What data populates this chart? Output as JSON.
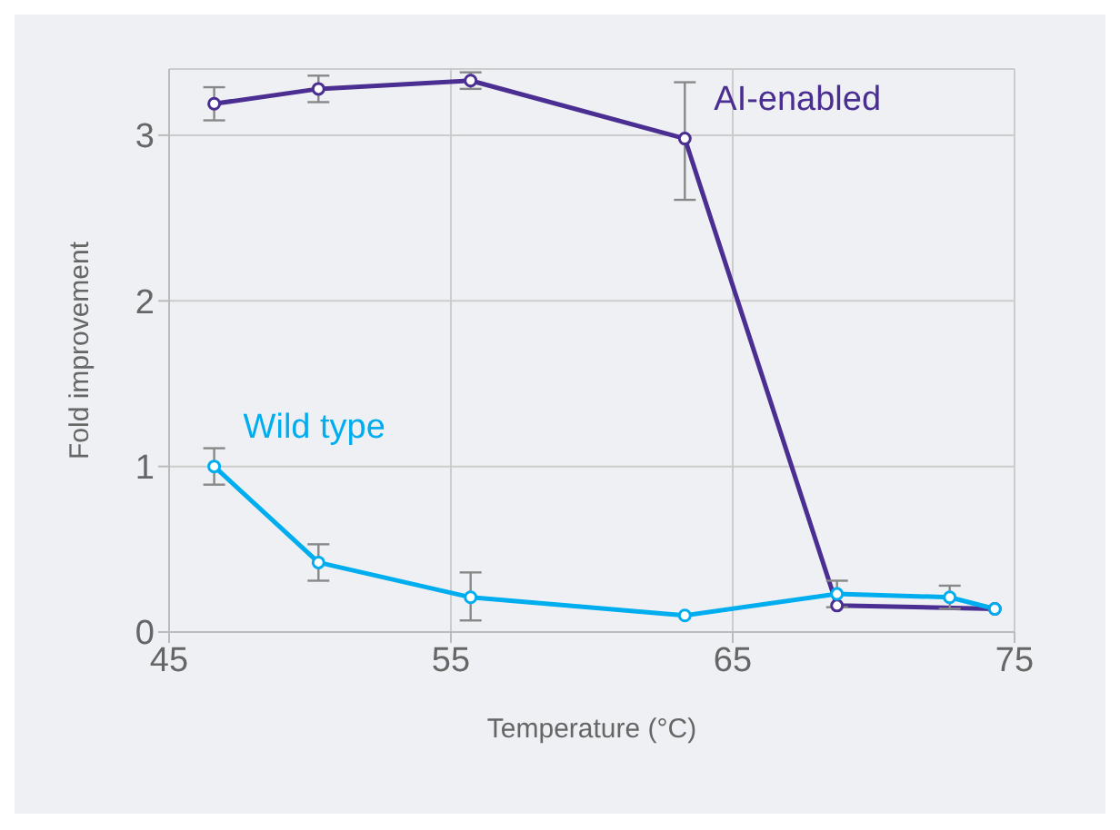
{
  "chart_data": {
    "type": "line",
    "xlabel": "Temperature (°C)",
    "ylabel": "Fold improvement",
    "xlim": [
      45,
      75
    ],
    "xticks": [
      45,
      55,
      65,
      75
    ],
    "ylim": [
      0,
      3.4
    ],
    "yticks": [
      0,
      1,
      2,
      3
    ],
    "grid": true,
    "legend": false,
    "marker": "circle",
    "line_style": "solid",
    "series": [
      {
        "name": "AI-enabled",
        "color": "#4b2e91",
        "x": [
          46.6,
          50.3,
          55.7,
          63.3,
          68.7,
          74.3
        ],
        "values": [
          3.19,
          3.28,
          3.33,
          2.98,
          0.16,
          0.14
        ],
        "errors": [
          0.1,
          0.08,
          0.05,
          [
            2.61,
            3.32
          ],
          null,
          null
        ]
      },
      {
        "name": "Wild type",
        "color": "#00aeef",
        "x": [
          46.6,
          50.3,
          55.7,
          63.3,
          68.7,
          72.7,
          74.3
        ],
        "values": [
          1.0,
          0.42,
          0.21,
          0.1,
          0.23,
          0.21,
          0.14
        ],
        "errors": [
          0.11,
          0.11,
          [
            0.07,
            0.36
          ],
          null,
          0.08,
          0.07,
          null
        ]
      }
    ]
  }
}
